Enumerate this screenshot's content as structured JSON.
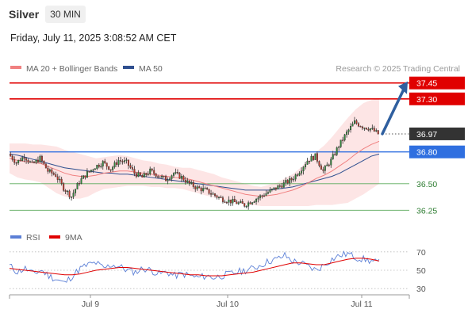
{
  "header": {
    "instrument": "Silver",
    "timeframe": "30 MIN",
    "datetime": "Friday, July 11, 2025 3:08:52 AM CET"
  },
  "legend": {
    "ma20": {
      "label": "MA 20 + Bollinger Bands",
      "color": "#f08080"
    },
    "ma50": {
      "label": "MA 50",
      "color": "#2f4f8f"
    },
    "rsi": {
      "label": "RSI",
      "color": "#5b7fd6"
    },
    "ma9": {
      "label": "9MA",
      "color": "#e00000"
    }
  },
  "copyright": "Research © 2025 Trading Central",
  "colors": {
    "resistance": "#e00000",
    "pivot": "#2f6fe0",
    "support": "#5aaa5a",
    "current": "#333333",
    "arrow": "#2f5f9f",
    "bull_candle": "#2e8b3a",
    "bear_candle": "#c0392b",
    "band_fill": "#fde2e2"
  },
  "chart_data": [
    {
      "type": "candlestick",
      "title": "Silver 30 MIN",
      "x_ticks": [
        "Jul 9",
        "Jul 10",
        "Jul 11"
      ],
      "ylim": [
        36.2,
        37.5
      ],
      "levels": [
        {
          "value": 37.45,
          "label": "37.45",
          "kind": "resistance"
        },
        {
          "value": 37.3,
          "label": "37.30",
          "kind": "resistance"
        },
        {
          "value": 36.97,
          "label": "36.97",
          "kind": "current"
        },
        {
          "value": 36.8,
          "label": "36.80",
          "kind": "pivot"
        },
        {
          "value": 36.5,
          "label": "36.50",
          "kind": "support"
        },
        {
          "value": 36.25,
          "label": "36.25",
          "kind": "support"
        }
      ],
      "projection": {
        "from": 36.97,
        "to": 37.45
      },
      "close_path": [
        36.78,
        36.7,
        36.76,
        36.68,
        36.74,
        36.62,
        36.58,
        36.46,
        36.38,
        36.52,
        36.6,
        36.66,
        36.7,
        36.64,
        36.72,
        36.7,
        36.6,
        36.56,
        36.62,
        36.58,
        36.54,
        36.6,
        36.56,
        36.5,
        36.46,
        36.44,
        36.4,
        36.36,
        36.34,
        36.32,
        36.3,
        36.34,
        36.38,
        36.42,
        36.46,
        36.5,
        36.54,
        36.62,
        36.72,
        36.76,
        36.62,
        36.72,
        36.86,
        36.98,
        37.08,
        37.04,
        37.02,
        36.97
      ],
      "ma20": [
        36.74,
        36.72,
        36.71,
        36.7,
        36.69,
        36.66,
        36.63,
        36.6,
        36.58,
        36.57,
        36.57,
        36.58,
        36.6,
        36.61,
        36.62,
        36.62,
        36.61,
        36.6,
        36.59,
        36.58,
        36.57,
        36.56,
        36.55,
        36.54,
        36.52,
        36.5,
        36.48,
        36.46,
        36.44,
        36.42,
        36.4,
        36.39,
        36.38,
        36.39,
        36.4,
        36.42,
        36.44,
        36.47,
        36.51,
        36.55,
        36.58,
        36.62,
        36.67,
        36.72,
        36.78,
        36.83,
        36.87,
        36.9
      ],
      "ma50": [
        36.78,
        36.77,
        36.75,
        36.73,
        36.71,
        36.69,
        36.67,
        36.65,
        36.64,
        36.63,
        36.62,
        36.61,
        36.6,
        36.6,
        36.59,
        36.59,
        36.58,
        36.57,
        36.56,
        36.55,
        36.54,
        36.53,
        36.52,
        36.51,
        36.5,
        36.49,
        36.48,
        36.47,
        36.46,
        36.45,
        36.44,
        36.44,
        36.44,
        36.44,
        36.45,
        36.46,
        36.47,
        36.49,
        36.51,
        36.53,
        36.55,
        36.57,
        36.6,
        36.64,
        36.68,
        36.72,
        36.76,
        36.78
      ],
      "bb_width": [
        0.14,
        0.16,
        0.17,
        0.17,
        0.18,
        0.2,
        0.22,
        0.22,
        0.22,
        0.21,
        0.19,
        0.16,
        0.15,
        0.15,
        0.15,
        0.14,
        0.13,
        0.12,
        0.12,
        0.11,
        0.11,
        0.1,
        0.1,
        0.11,
        0.11,
        0.11,
        0.11,
        0.1,
        0.1,
        0.1,
        0.1,
        0.09,
        0.09,
        0.1,
        0.11,
        0.13,
        0.15,
        0.18,
        0.22,
        0.25,
        0.28,
        0.32,
        0.36,
        0.4,
        0.42,
        0.43,
        0.42,
        0.4
      ]
    },
    {
      "type": "line",
      "title": "RSI",
      "ylim": [
        25,
        75
      ],
      "y_ticks": [
        70,
        50,
        30
      ],
      "series": [
        {
          "name": "RSI",
          "values": [
            55,
            48,
            52,
            46,
            50,
            44,
            40,
            36,
            44,
            52,
            56,
            58,
            52,
            56,
            54,
            50,
            48,
            52,
            50,
            46,
            48,
            44,
            46,
            44,
            42,
            44,
            42,
            44,
            46,
            48,
            50,
            52,
            56,
            60,
            62,
            66,
            60,
            58,
            54,
            50,
            56,
            62,
            66,
            68,
            64,
            62,
            60,
            58
          ]
        },
        {
          "name": "9MA",
          "values": [
            52,
            51,
            50,
            49,
            48,
            47,
            46,
            45,
            45,
            46,
            48,
            50,
            51,
            52,
            53,
            53,
            52,
            51,
            50,
            49,
            48,
            47,
            46,
            45,
            45,
            44,
            44,
            44,
            45,
            46,
            47,
            48,
            50,
            52,
            54,
            56,
            58,
            58,
            57,
            56,
            56,
            58,
            60,
            62,
            63,
            63,
            62,
            60
          ]
        }
      ]
    }
  ]
}
